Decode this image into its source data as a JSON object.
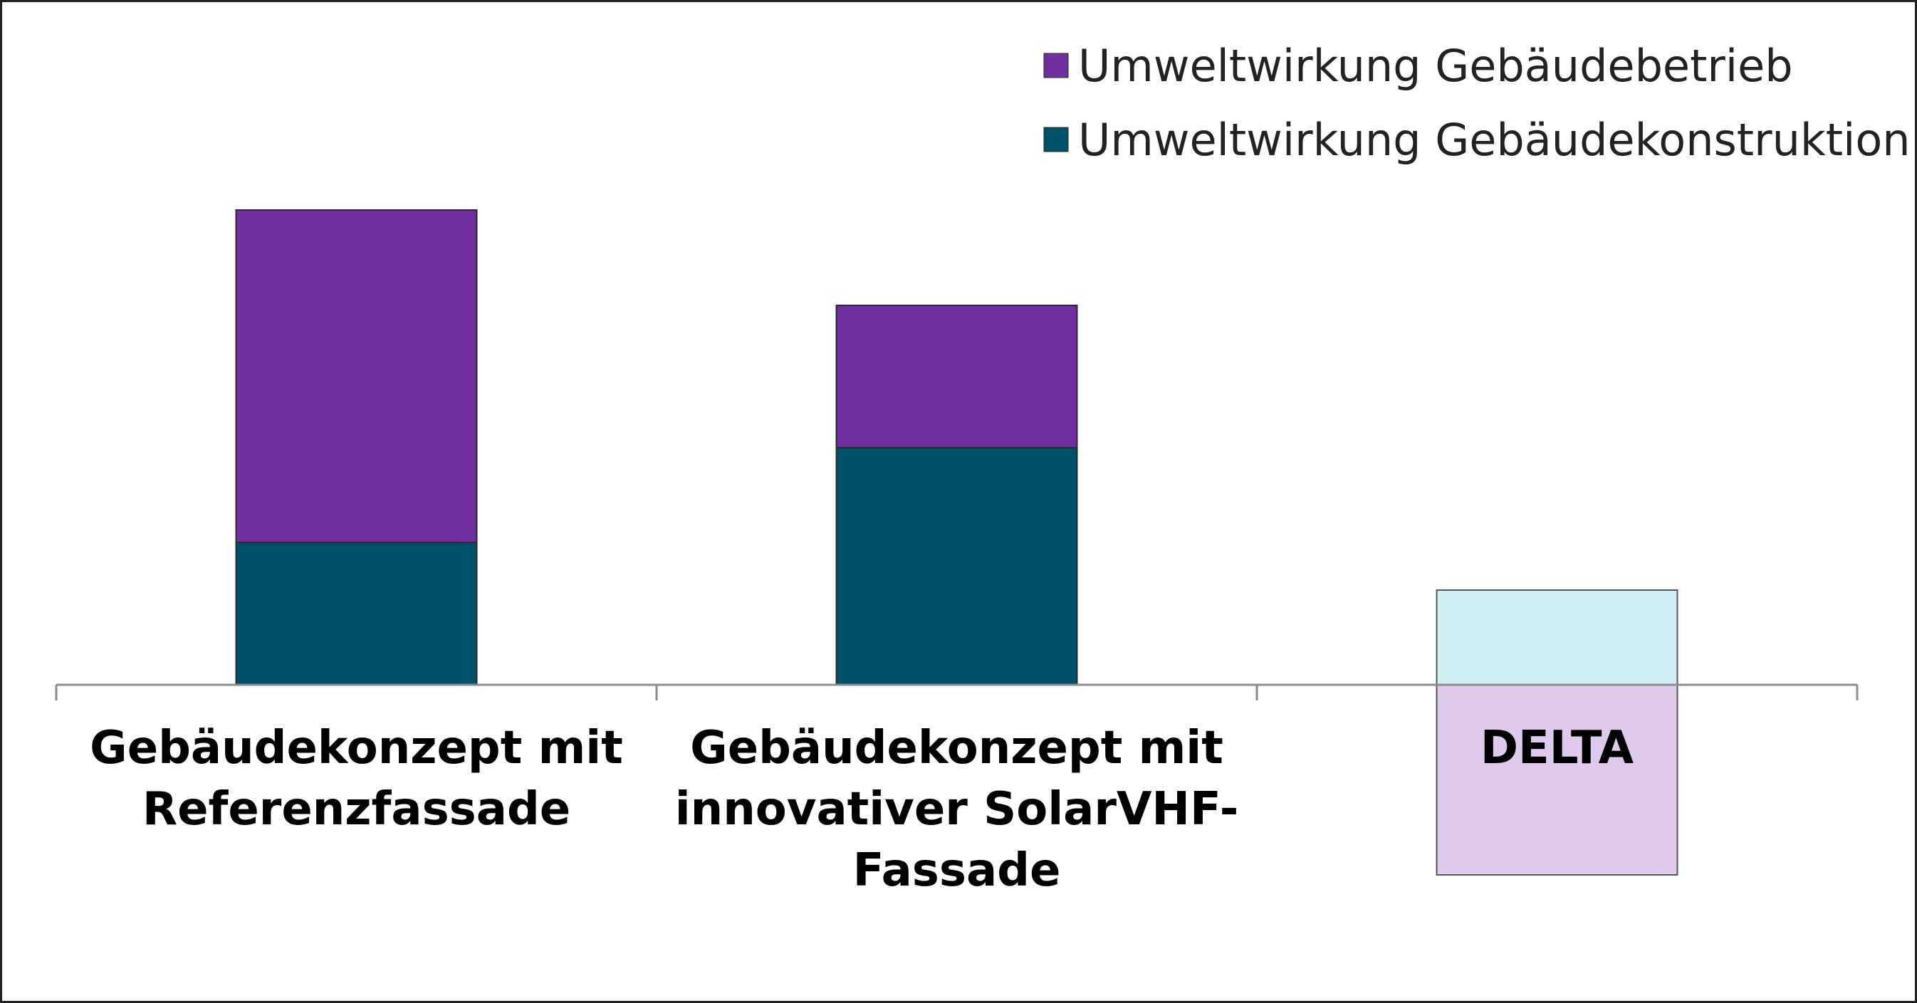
{
  "chart_data": {
    "type": "bar",
    "stacked": true,
    "categories": [
      "Gebäudekonzept mit Referenzfassade",
      "Gebäudekonzept mit innovativer SolarVHF-Fassade",
      "DELTA"
    ],
    "category_label_lines": [
      [
        "Gebäudekonzept mit",
        "Referenzfassade"
      ],
      [
        "Gebäudekonzept mit",
        "innovativer SolarVHF-",
        "Fassade"
      ],
      [
        "DELTA"
      ]
    ],
    "series": [
      {
        "name": "Umweltwirkung Gebäudekonstruktion",
        "color": "#00506a",
        "values": [
          200,
          333,
          null
        ]
      },
      {
        "name": "Umweltwirkung Gebäudebetrieb",
        "color": "#6f2f9f",
        "values": [
          467,
          200,
          null
        ]
      }
    ],
    "delta": {
      "category": "DELTA",
      "positive": 133,
      "negative": -267,
      "positive_color": "#d3eff6",
      "negative_color": "#dfc9ec"
    },
    "ylim": [
      -300,
      700
    ],
    "y_axis_visible": false,
    "grid": false,
    "legend_position": "top-right",
    "title": "",
    "xlabel": "",
    "ylabel": ""
  }
}
